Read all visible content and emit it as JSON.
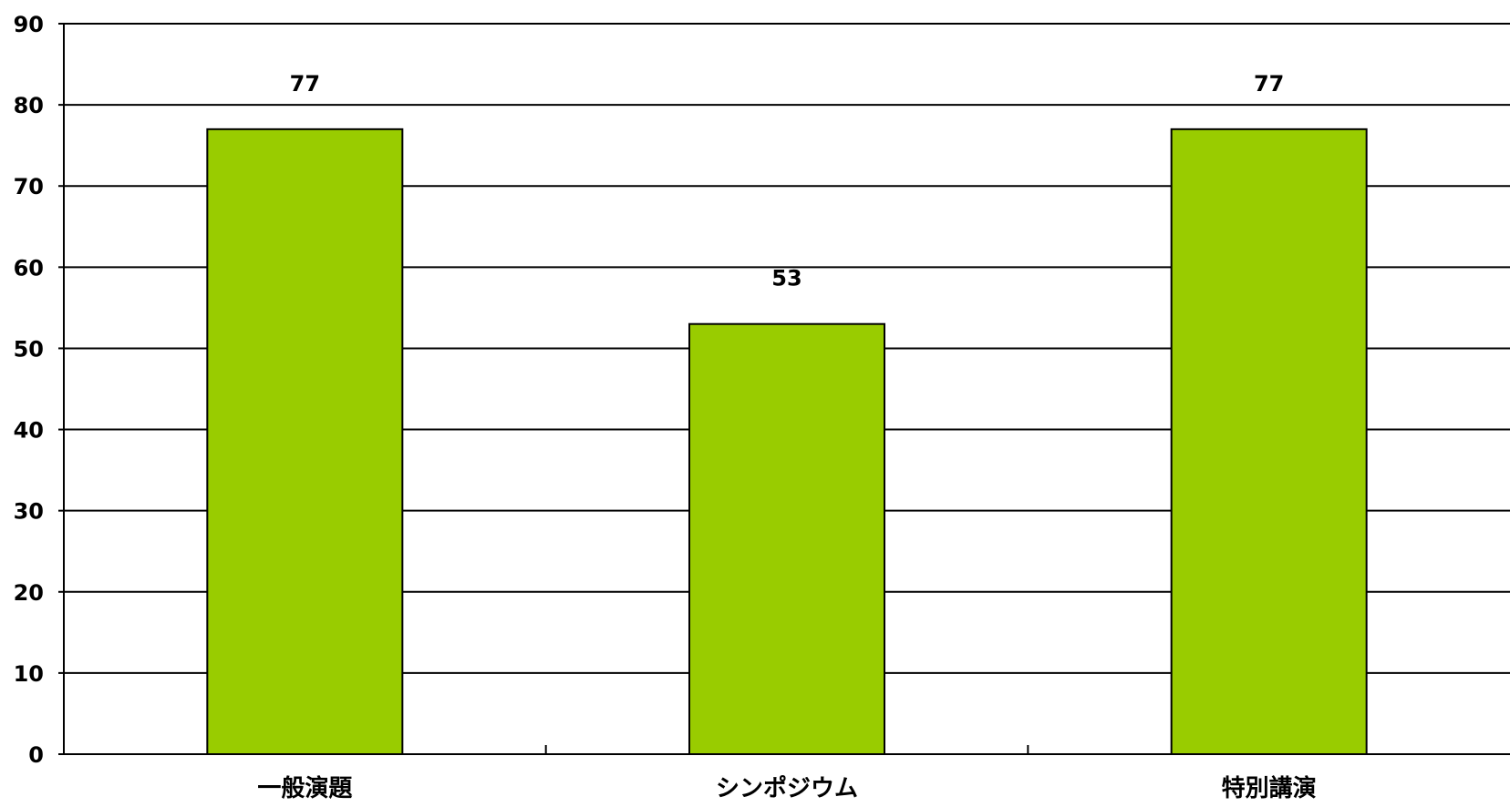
{
  "chart_data": {
    "type": "bar",
    "categories": [
      "一般演題",
      "シンポジウム",
      "特別講演"
    ],
    "values": [
      77,
      53,
      77
    ],
    "title": "",
    "xlabel": "",
    "ylabel": "",
    "ylim": [
      0,
      90
    ],
    "yticks": [
      0,
      10,
      20,
      30,
      40,
      50,
      60,
      70,
      80,
      90
    ],
    "grid": true,
    "legend": "none",
    "data_labels": true,
    "colors": {
      "bar_fill": "#99cc00",
      "bar_stroke": "#000000",
      "grid": "#000000",
      "background": "#ffffff"
    }
  }
}
